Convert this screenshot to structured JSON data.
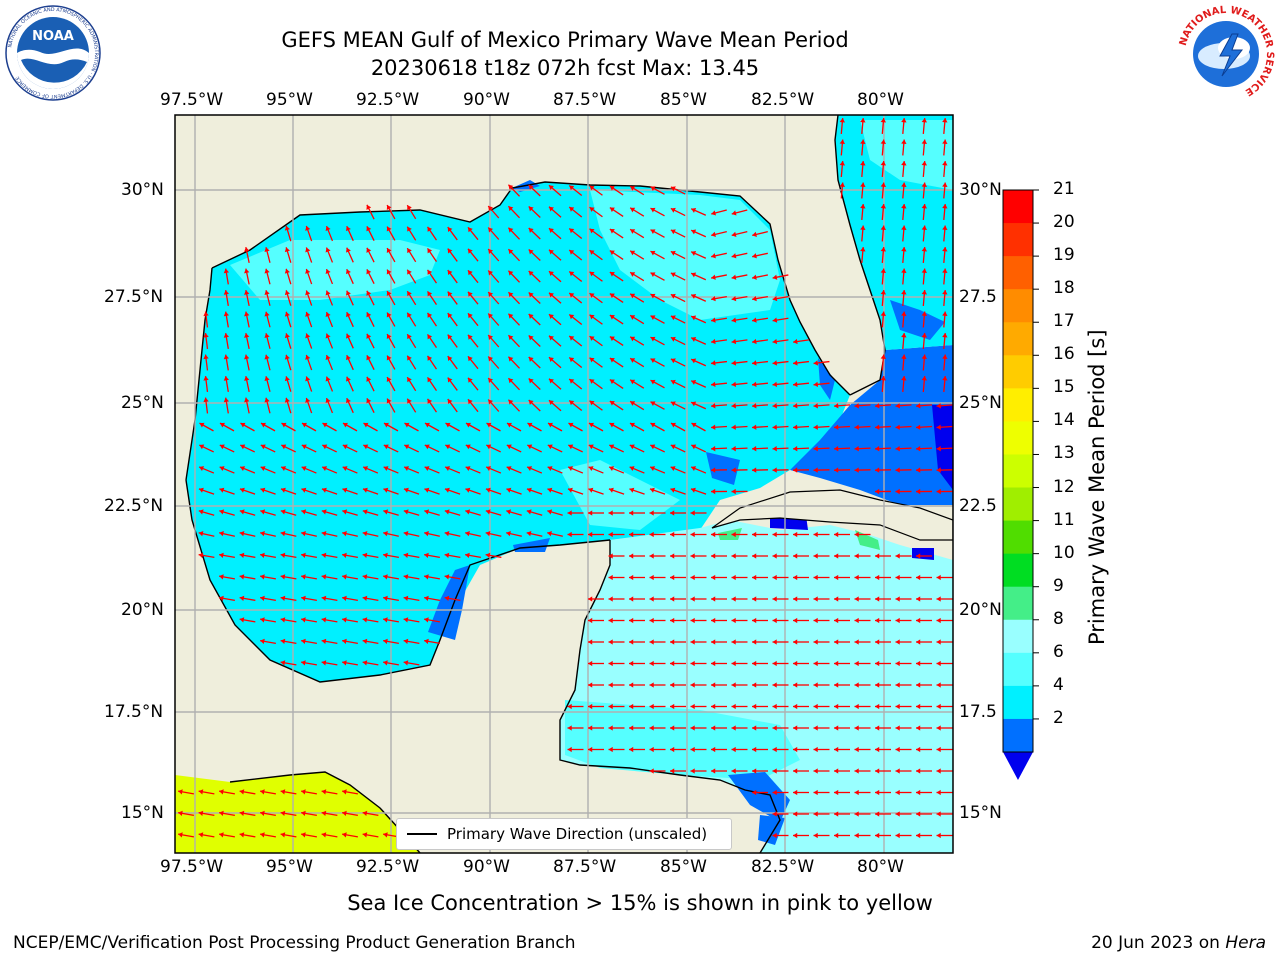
{
  "title": {
    "line1": "GEFS MEAN Gulf of Mexico Primary Wave Mean Period",
    "line2": "20230618 t18z 072h fcst   Max: 13.45"
  },
  "axes": {
    "lon_ticks": [
      "97.5°W",
      "95°W",
      "92.5°W",
      "90°W",
      "87.5°W",
      "85°W",
      "82.5°W",
      "80°W"
    ],
    "lat_ticks_left": [
      "30°N",
      "27.5°N",
      "25°N",
      "22.5°N",
      "20°N",
      "17.5°N",
      "15°N"
    ],
    "lat_ticks_right": [
      "30°N",
      "27.5",
      "25°N",
      "22.5",
      "20°N",
      "17.5",
      "15°N"
    ]
  },
  "legend": {
    "label": "Primary Wave Direction (unscaled)"
  },
  "colorbar": {
    "title": "Primary Wave Mean Period [s]",
    "levels": [
      "21",
      "20",
      "19",
      "18",
      "17",
      "16",
      "15",
      "14",
      "13",
      "12",
      "11",
      "10",
      "9",
      "8",
      "6",
      "4",
      "2"
    ],
    "colors": [
      "#ff0000",
      "#ff3000",
      "#ff6000",
      "#ff8c00",
      "#ffaa00",
      "#ffcc00",
      "#ffee00",
      "#eeff00",
      "#ccff00",
      "#a0ee00",
      "#50dd00",
      "#00dd22",
      "#44ee88",
      "#99ffff",
      "#55ffff",
      "#00f0ff",
      "#0070ff"
    ],
    "extend_color": "#0000ee"
  },
  "colors": {
    "land": "#efeedc",
    "sea_4_6": "#00f0ff",
    "sea_6_8": "#55ffff",
    "sea_8_9": "#99ffff",
    "sea_2_4": "#0070ff",
    "sea_lt2": "#0000ee",
    "ice": "#e0ff00",
    "arrow": "#ff0000"
  },
  "caption": "Sea Ice Concentration > 15% is shown in pink to yellow",
  "footer": {
    "left": "NCEP/EMC/Verification Post Processing Product Generation Branch",
    "date": "20 Jun 2023 on ",
    "machine": "Hera"
  },
  "logos": {
    "noaa": "NOAA",
    "noaa_ring": "NATIONAL OCEANIC AND ATMOSPHERIC ADMINISTRATION · U.S. DEPARTMENT OF COMMERCE",
    "nws_ring": "NATIONAL WEATHER SERVICE"
  }
}
